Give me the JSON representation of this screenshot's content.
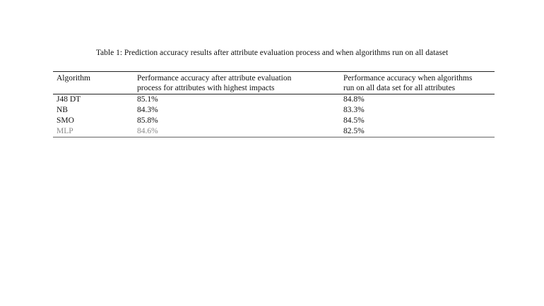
{
  "caption": "Table 1: Prediction accuracy results after attribute evaluation process and when algorithms run on all dataset",
  "table": {
    "headers": [
      {
        "lines": [
          "Algorithm"
        ]
      },
      {
        "lines": [
          "Performance accuracy after attribute evaluation",
          "process for attributes with highest impacts"
        ]
      },
      {
        "lines": [
          "Performance accuracy when algorithms",
          "run on all data set for all attributes"
        ]
      }
    ],
    "rows": [
      [
        "J48 DT",
        "85.1%",
        "84.8%"
      ],
      [
        "NB",
        "84.3%",
        "83.3%"
      ],
      [
        "SMO",
        "85.8%",
        "84.5%"
      ],
      [
        "MLP",
        "84.6%",
        "82.5%"
      ]
    ]
  }
}
